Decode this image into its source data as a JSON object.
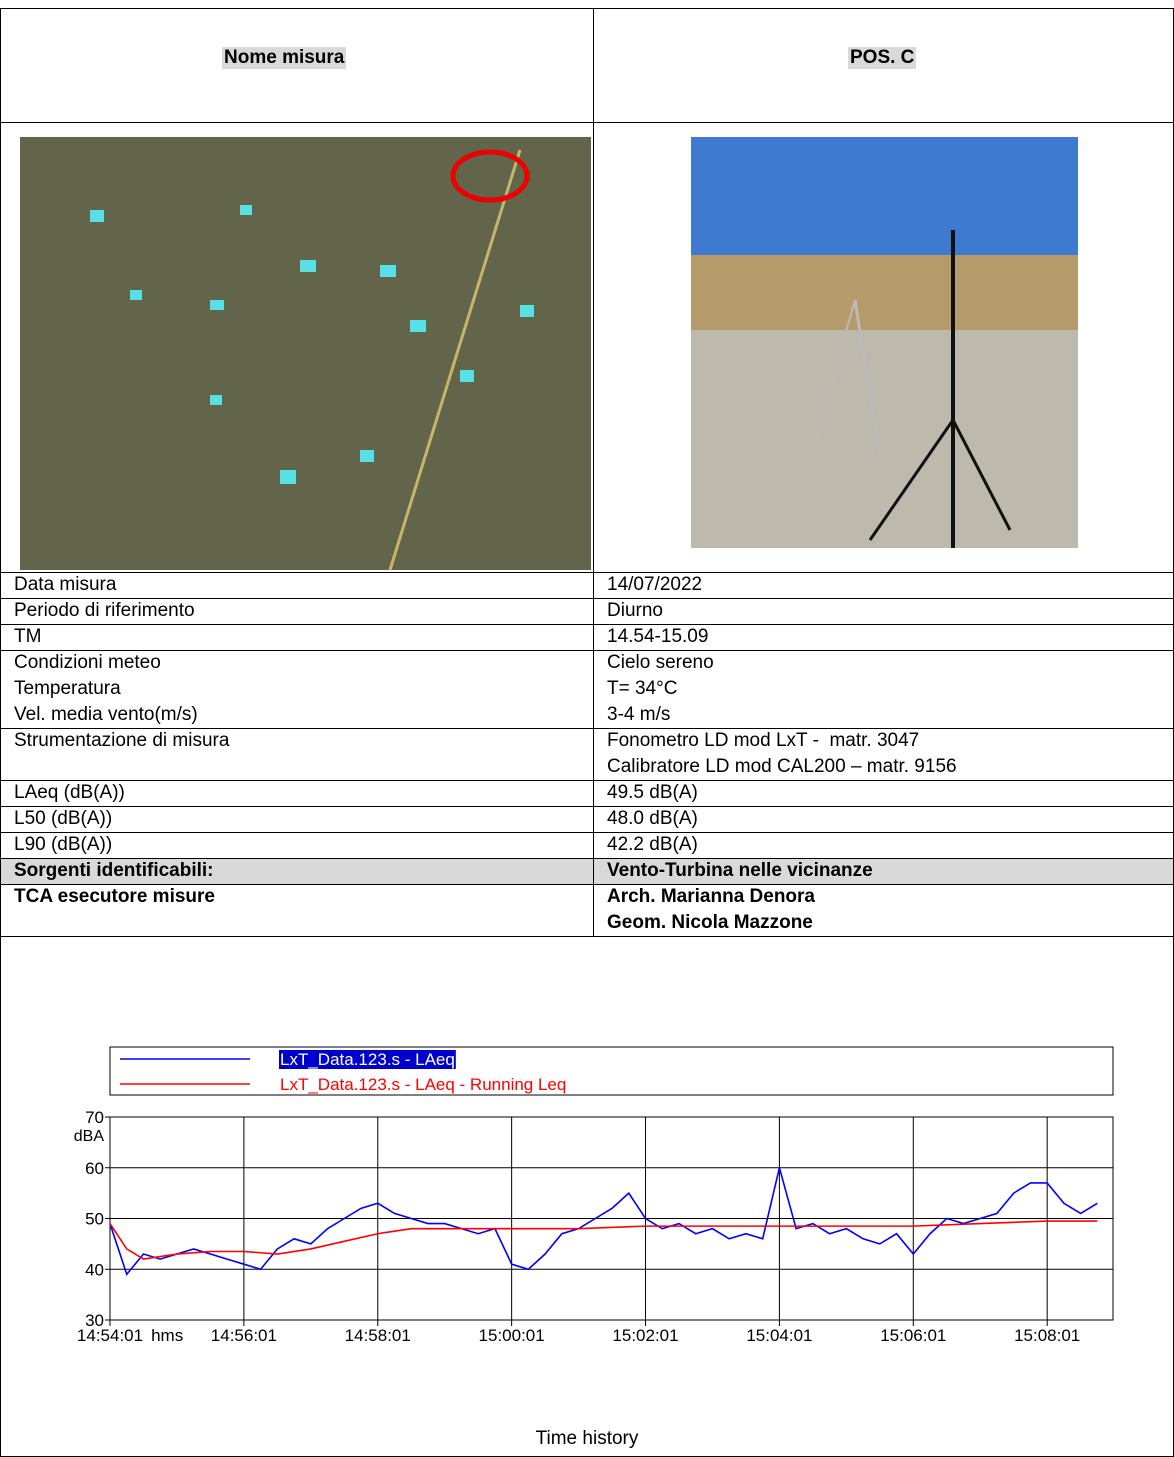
{
  "header": {
    "label": "Nome misura",
    "value": "POS. C"
  },
  "rows": [
    {
      "label": [
        "Data misura"
      ],
      "value": [
        "14/07/2022"
      ]
    },
    {
      "label": [
        "Periodo di riferimento"
      ],
      "value": [
        "Diurno"
      ]
    },
    {
      "label": [
        "TM"
      ],
      "value": [
        "14.54-15.09"
      ]
    },
    {
      "label": [
        "Condizioni meteo",
        "Temperatura",
        "Vel. media vento(m/s)"
      ],
      "value": [
        "Cielo sereno",
        "T= 34°C",
        "3-4 m/s"
      ]
    },
    {
      "label": [
        "Strumentazione di misura"
      ],
      "value": [
        "Fonometro LD mod LxT -  matr. 3047",
        "Calibratore LD mod CAL200 – matr. 9156"
      ]
    },
    {
      "label": [
        "LAeq (dB(A))"
      ],
      "value": [
        "49.5 dB(A)"
      ]
    },
    {
      "label": [
        "L50 (dB(A))"
      ],
      "value": [
        "48.0 dB(A)"
      ]
    },
    {
      "label": [
        "L90 (dB(A))"
      ],
      "value": [
        "42.2 dB(A)"
      ]
    },
    {
      "label": [
        "Sorgenti identificabili:"
      ],
      "value": [
        "Vento-Turbina nelle vicinanze"
      ]
    },
    {
      "label": [
        "TCA esecutore misure"
      ],
      "value": [
        "Arch. Marianna Denora",
        "Geom. Nicola Mazzone"
      ]
    }
  ],
  "chart_data": {
    "type": "line",
    "x_label": "hms",
    "y_label": "dBA",
    "xlim": [
      "14:54:01",
      "15:09:00"
    ],
    "ylim": [
      30,
      70
    ],
    "yticks": [
      30,
      40,
      50,
      60,
      70
    ],
    "xticks": [
      "14:54:01",
      "14:56:01",
      "14:58:01",
      "15:00:01",
      "15:02:01",
      "15:04:01",
      "15:06:01",
      "15:08:01"
    ],
    "grid": true,
    "series": [
      {
        "name": "LxT_Data.123.s - LAeq",
        "color": "#0000ff",
        "x": [
          "14:54:01",
          "14:54:16",
          "14:54:31",
          "14:54:46",
          "14:55:01",
          "14:55:16",
          "14:55:31",
          "14:55:46",
          "14:56:01",
          "14:56:16",
          "14:56:31",
          "14:56:46",
          "14:57:01",
          "14:57:16",
          "14:57:31",
          "14:57:46",
          "14:58:01",
          "14:58:16",
          "14:58:31",
          "14:58:46",
          "14:59:01",
          "14:59:16",
          "14:59:31",
          "14:59:46",
          "15:00:01",
          "15:00:16",
          "15:00:31",
          "15:00:46",
          "15:01:01",
          "15:01:16",
          "15:01:31",
          "15:01:46",
          "15:02:01",
          "15:02:16",
          "15:02:31",
          "15:02:46",
          "15:03:01",
          "15:03:16",
          "15:03:31",
          "15:03:46",
          "15:04:01",
          "15:04:16",
          "15:04:31",
          "15:04:46",
          "15:05:01",
          "15:05:16",
          "15:05:31",
          "15:05:46",
          "15:06:01",
          "15:06:16",
          "15:06:31",
          "15:06:46",
          "15:07:01",
          "15:07:16",
          "15:07:31",
          "15:07:46",
          "15:08:01",
          "15:08:16",
          "15:08:31",
          "15:08:46"
        ],
        "values": [
          49,
          39,
          43,
          42,
          43,
          44,
          43,
          42,
          41,
          40,
          44,
          46,
          45,
          48,
          50,
          52,
          53,
          51,
          50,
          49,
          49,
          48,
          47,
          48,
          41,
          40,
          43,
          47,
          48,
          50,
          52,
          55,
          50,
          48,
          49,
          47,
          48,
          46,
          47,
          46,
          60,
          48,
          49,
          47,
          48,
          46,
          45,
          47,
          43,
          47,
          50,
          49,
          50,
          51,
          55,
          57,
          57,
          53,
          51,
          53
        ]
      },
      {
        "name": "LxT_Data.123.s - LAeq - Running Leq",
        "color": "#ff0000",
        "x": [
          "14:54:01",
          "14:54:16",
          "14:54:31",
          "14:55:01",
          "14:55:31",
          "14:56:01",
          "14:56:31",
          "14:57:01",
          "14:57:31",
          "14:58:01",
          "14:58:31",
          "14:59:01",
          "15:00:01",
          "15:01:01",
          "15:02:01",
          "15:03:01",
          "15:04:01",
          "15:05:01",
          "15:06:01",
          "15:07:01",
          "15:08:01",
          "15:08:46"
        ],
        "values": [
          49,
          44,
          42,
          43,
          43.5,
          43.5,
          43,
          44,
          45.5,
          47,
          48,
          48,
          48,
          48,
          48.5,
          48.5,
          48.5,
          48.5,
          48.5,
          49,
          49.5,
          49.5
        ]
      }
    ]
  },
  "caption": "Time history"
}
